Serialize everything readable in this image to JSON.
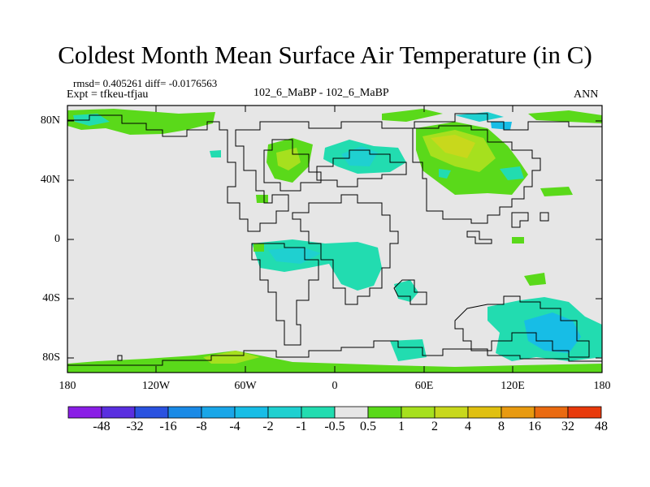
{
  "title": "Coldest Month Mean Surface Air Temperature (in C)",
  "stats_line": "rmsd= 0.405261 diff= -0.0176563",
  "expt_line": "Expt = tfkeu-tfjau",
  "center_label": "102_6_MaBP - 102_6_MaBP",
  "right_label": "ANN",
  "y_ticks": [
    "80N",
    "40N",
    "0",
    "40S",
    "80S"
  ],
  "x_ticks": [
    "180",
    "120W",
    "60W",
    "0",
    "60E",
    "120E",
    "180"
  ],
  "colorbar": {
    "labels": [
      "-48",
      "-32",
      "-16",
      "-8",
      "-4",
      "-2",
      "-1",
      "-0.5",
      "0.5",
      "1",
      "2",
      "4",
      "8",
      "16",
      "32",
      "48"
    ],
    "colors": [
      "#8a1ee6",
      "#5a2fe0",
      "#2a52e0",
      "#1a8ae6",
      "#19a6e8",
      "#17bde6",
      "#1fd0d0",
      "#22dcb0",
      "#e6e6e6",
      "#5ad91a",
      "#a6e01e",
      "#c8d81c",
      "#e0c010",
      "#e89a10",
      "#ea6a10",
      "#e83a0c"
    ]
  },
  "map": {
    "background_color": "#e6e6e6",
    "projection": "cylindrical-equidistant",
    "lon_range": [
      -180,
      180
    ],
    "lat_range": [
      -90,
      90
    ]
  }
}
